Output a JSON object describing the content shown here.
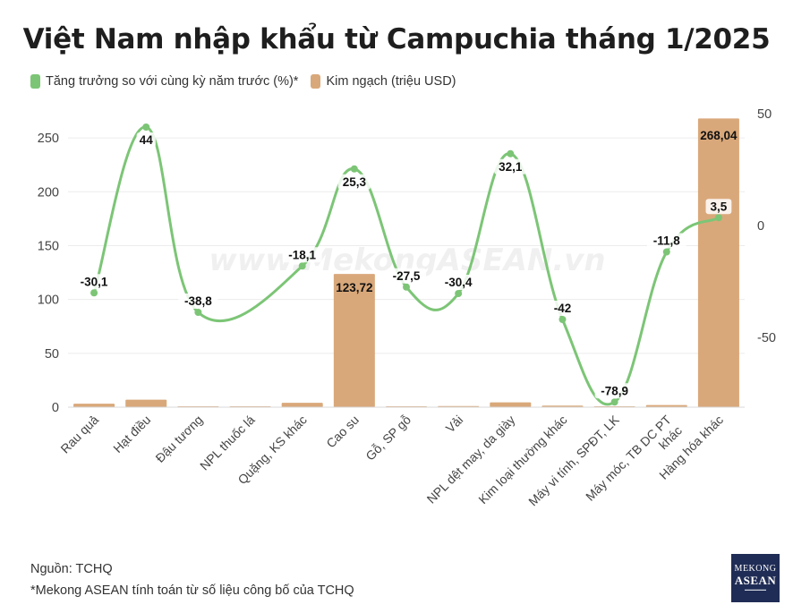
{
  "title": "Việt Nam nhập khẩu từ Campuchia tháng 1/2025",
  "legend": [
    {
      "label": "Tăng trưởng so với cùng kỳ năm trước (%)*",
      "color": "#7cc576"
    },
    {
      "label": "Kim ngạch (triệu USD)",
      "color": "#d9a87a"
    }
  ],
  "watermark": "www.MekongASEAN.vn",
  "footer": {
    "source": "Nguồn: TCHQ",
    "note": "*Mekong ASEAN tính toán từ số liệu công bố của TCHQ"
  },
  "logo": {
    "line1": "MEKONG",
    "line2": "ASEAN"
  },
  "chart_data": {
    "type": "bar+line",
    "categories": [
      "Rau quả",
      "Hạt điều",
      "Đậu tương",
      "NPL thuốc lá",
      "Quặng, KS khác",
      "Cao su",
      "Gỗ, SP gỗ",
      "Vải",
      "NPL dệt may, da giày",
      "Kim loại thường khác",
      "Máy vi tính, SPĐT, LK",
      "Máy móc, TB DC PT khác",
      "Hàng hóa khác"
    ],
    "series": [
      {
        "name": "Kim ngạch (triệu USD)",
        "type": "bar",
        "axis": "left",
        "color": "#d9a87a",
        "values": [
          3.2,
          7.0,
          0.4,
          0.1,
          4.0,
          123.72,
          0.5,
          1.0,
          4.5,
          1.5,
          0.1,
          2.0,
          268.04
        ],
        "labels": [
          "",
          "",
          "",
          "",
          "",
          "123,72",
          "",
          "",
          "",
          "",
          "",
          "",
          "268,04"
        ]
      },
      {
        "name": "Tăng trưởng so với cùng kỳ năm trước (%)*",
        "type": "line",
        "axis": "right",
        "color": "#7cc576",
        "values": [
          -30.1,
          44,
          -38.8,
          null,
          -18.1,
          25.3,
          -27.5,
          -30.4,
          32.1,
          -42,
          -78.9,
          -11.8,
          3.5
        ],
        "labels": [
          "-30,1",
          "44",
          "-38,8",
          "",
          "-18,1",
          "25,3",
          "-27,5",
          "-30,4",
          "32,1",
          "-42",
          "-78,9",
          "-11,8",
          "3,5"
        ]
      }
    ],
    "left_axis": {
      "ticks": [
        0,
        50,
        100,
        150,
        200,
        250
      ],
      "range": [
        0,
        280
      ]
    },
    "right_axis": {
      "ticks": [
        -50,
        0,
        50
      ],
      "range": [
        -80,
        50
      ]
    }
  }
}
